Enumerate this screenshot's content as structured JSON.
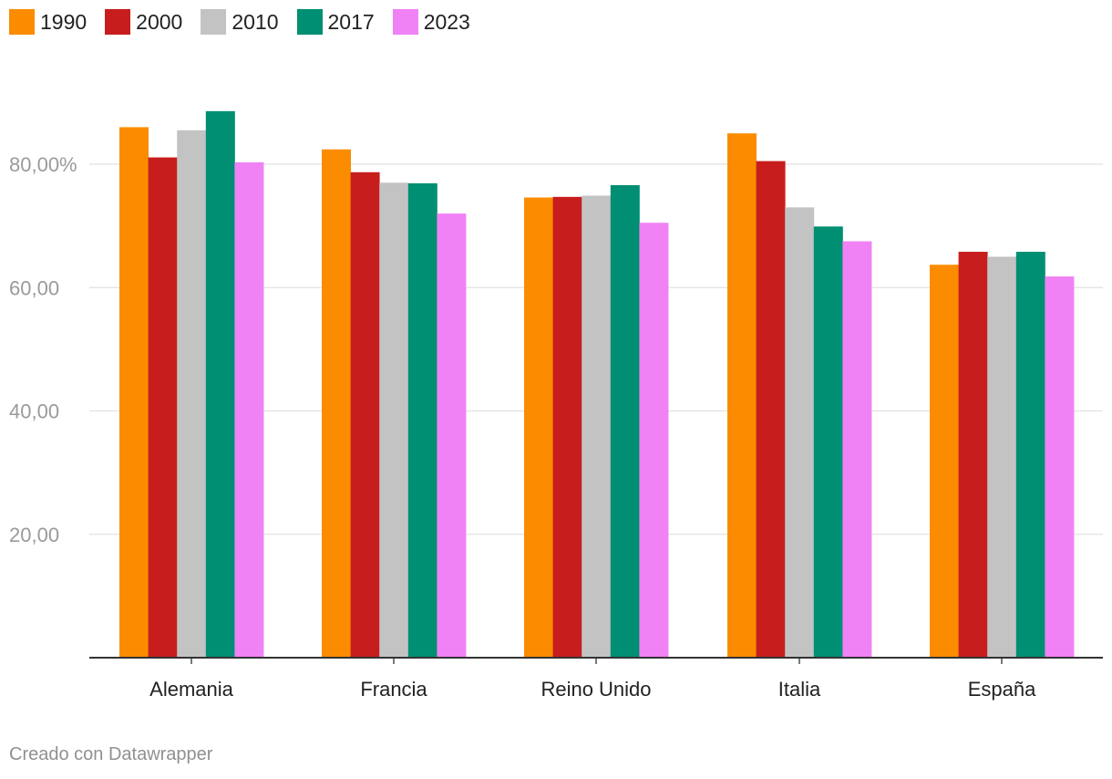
{
  "chart_data": {
    "type": "bar",
    "categories": [
      "Alemania",
      "Francia",
      "Reino Unido",
      "Italia",
      "España"
    ],
    "series": [
      {
        "name": "1990",
        "color": "#fb8c00",
        "values": [
          86.0,
          82.4,
          74.6,
          85.0,
          63.7
        ]
      },
      {
        "name": "2000",
        "color": "#c71e1d",
        "values": [
          81.1,
          78.7,
          74.7,
          80.5,
          65.8
        ]
      },
      {
        "name": "2010",
        "color": "#c3c3c3",
        "values": [
          85.5,
          77.0,
          74.9,
          73.0,
          65.0
        ]
      },
      {
        "name": "2017",
        "color": "#008f72",
        "values": [
          88.6,
          76.9,
          76.6,
          69.9,
          65.8
        ]
      },
      {
        "name": "2023",
        "color": "#f082f5",
        "values": [
          80.3,
          72.0,
          70.5,
          67.5,
          61.8
        ]
      }
    ],
    "yticks": [
      {
        "value": 20,
        "label": "20,00"
      },
      {
        "value": 40,
        "label": "40,00"
      },
      {
        "value": 60,
        "label": "60,00"
      },
      {
        "value": 80,
        "label": "80,00%"
      }
    ],
    "ylim": [
      0,
      90
    ],
    "grid": true,
    "legend_position": "top-left"
  },
  "footer": {
    "credit": "Creado con Datawrapper"
  }
}
